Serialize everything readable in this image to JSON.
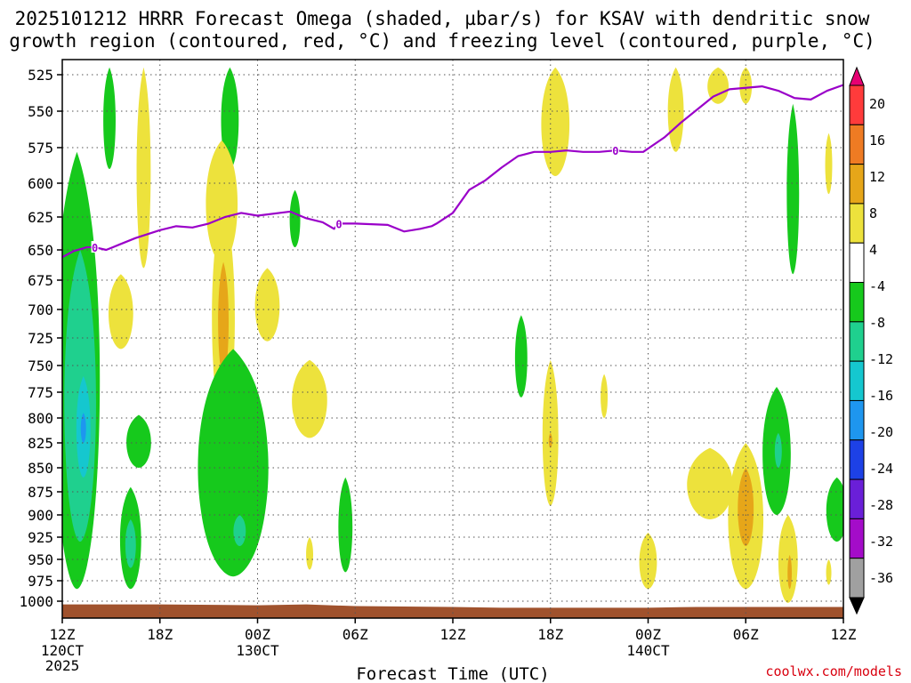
{
  "chart_data": {
    "type": "heatmap",
    "title_line1": "2025101212 HRRR Forecast Omega (shaded, µbar/s) for KSAV with dendritic snow",
    "title_line2": "growth region (contoured, red, °C) and freezing level (contoured, purple, °C)",
    "xlabel": "Forecast Time (UTC)",
    "credit": "coolwx.com/models",
    "x_hours": [
      0,
      6,
      12,
      18,
      24,
      30,
      36,
      42,
      48
    ],
    "x_tick_labels": [
      "12Z",
      "18Z",
      "00Z",
      "06Z",
      "12Z",
      "18Z",
      "00Z",
      "06Z",
      "12Z"
    ],
    "x_date_labels": [
      {
        "hour": 0,
        "text": "120CT"
      },
      {
        "hour": 12,
        "text": "130CT"
      },
      {
        "hour": 36,
        "text": "140CT"
      }
    ],
    "year_label": "2025",
    "y_levels": [
      525,
      550,
      575,
      600,
      625,
      650,
      675,
      700,
      725,
      750,
      775,
      800,
      825,
      850,
      875,
      900,
      925,
      950,
      975,
      1000
    ],
    "ylim": [
      517,
      1010
    ],
    "colorbar": {
      "levels": [
        20,
        16,
        12,
        8,
        4,
        -4,
        -8,
        -12,
        -16,
        -20,
        -24,
        -28,
        -32,
        -36
      ],
      "colors": [
        "#e60073",
        "#ff3b3b",
        "#ef7b23",
        "#e6a619",
        "#ede23c",
        "#ffffff",
        "#16c91c",
        "#1fd08e",
        "#15c7cf",
        "#1e96ef",
        "#1d41e6",
        "#6a1fd8",
        "#a40cc9",
        "#a0a0a0",
        "#000000"
      ]
    },
    "freezing_level": {
      "label": "0",
      "color": "#9a00c9",
      "hours": [
        0,
        0.7,
        1.5,
        2,
        2.7,
        3.5,
        4.5,
        6,
        7,
        8,
        9,
        10,
        11,
        12,
        14,
        15,
        16,
        16.7,
        17,
        18,
        20,
        21,
        22,
        22.7,
        23,
        24,
        25,
        26,
        27,
        28,
        29,
        30,
        31,
        32,
        33,
        34,
        35,
        35.7,
        37,
        38,
        39,
        40,
        41,
        42,
        43,
        44,
        45,
        46,
        47,
        48
      ],
      "pressure": [
        656,
        651,
        648,
        648,
        650,
        646,
        641,
        635,
        632,
        633,
        630,
        625,
        622,
        624,
        621,
        626,
        629,
        634,
        630,
        630,
        631,
        636,
        634,
        632,
        630,
        622,
        605,
        598,
        589,
        581,
        578,
        578,
        577,
        578,
        578,
        577,
        578,
        578,
        568,
        558,
        549,
        540,
        535,
        534,
        533,
        536,
        541,
        542,
        536,
        532
      ],
      "label_hours": [
        2,
        17,
        34
      ]
    },
    "omega_regions": [
      {
        "name": "early-column-green",
        "value": -8,
        "hour": 0.9,
        "p_top": 578,
        "p_bot": 985,
        "half_width": 1.3
      },
      {
        "name": "early-column-teal",
        "value": -12,
        "hour": 1.1,
        "p_top": 650,
        "p_bot": 930,
        "half_width": 0.9
      },
      {
        "name": "early-column-cyan",
        "value": -16,
        "hour": 1.3,
        "p_top": 760,
        "p_bot": 860,
        "half_width": 0.4
      },
      {
        "name": "early-column-blue",
        "value": -20,
        "hour": 1.3,
        "p_top": 795,
        "p_bot": 825,
        "half_width": 0.15
      },
      {
        "name": "upper-green-1",
        "value": -8,
        "hour": 2.9,
        "p_top": 520,
        "p_bot": 590,
        "half_width": 0.35
      },
      {
        "name": "upper-yellow-1",
        "value": 4,
        "hour": 5.0,
        "p_top": 520,
        "p_bot": 665,
        "half_width": 0.4
      },
      {
        "name": "yellow-700",
        "value": 4,
        "hour": 3.6,
        "p_top": 670,
        "p_bot": 735,
        "half_width": 0.7
      },
      {
        "name": "green-850",
        "value": -8,
        "hour": 4.7,
        "p_top": 797,
        "p_bot": 850,
        "half_width": 0.7
      },
      {
        "name": "green-935",
        "value": -8,
        "hour": 4.2,
        "p_top": 870,
        "p_bot": 985,
        "half_width": 0.6
      },
      {
        "name": "teal-935",
        "value": -12,
        "hour": 4.2,
        "p_top": 905,
        "p_bot": 960,
        "half_width": 0.3
      },
      {
        "name": "upper-green-2",
        "value": -8,
        "hour": 10.3,
        "p_top": 520,
        "p_bot": 590,
        "half_width": 0.5
      },
      {
        "name": "yellow-640",
        "value": 4,
        "hour": 9.8,
        "p_top": 570,
        "p_bot": 660,
        "half_width": 0.9
      },
      {
        "name": "yellow-tall",
        "value": 4,
        "hour": 9.9,
        "p_top": 615,
        "p_bot": 805,
        "half_width": 0.65
      },
      {
        "name": "orange-tall",
        "value": 8,
        "hour": 9.9,
        "p_top": 660,
        "p_bot": 760,
        "half_width": 0.3
      },
      {
        "name": "green-lower-block",
        "value": -8,
        "hour": 10.5,
        "p_top": 735,
        "p_bot": 970,
        "half_width": 2.0
      },
      {
        "name": "teal-915",
        "value": -12,
        "hour": 10.9,
        "p_top": 900,
        "p_bot": 935,
        "half_width": 0.35
      },
      {
        "name": "yellow-695",
        "value": 4,
        "hour": 12.6,
        "p_top": 665,
        "p_bot": 728,
        "half_width": 0.7
      },
      {
        "name": "green-630",
        "value": -8,
        "hour": 14.3,
        "p_top": 605,
        "p_bot": 648,
        "half_width": 0.3
      },
      {
        "name": "yellow-780",
        "value": 4,
        "hour": 15.2,
        "p_top": 745,
        "p_bot": 820,
        "half_width": 1.0
      },
      {
        "name": "yellow-945",
        "value": 4,
        "hour": 15.2,
        "p_top": 925,
        "p_bot": 962,
        "half_width": 0.2
      },
      {
        "name": "green-905",
        "value": -8,
        "hour": 17.4,
        "p_top": 860,
        "p_bot": 965,
        "half_width": 0.4
      },
      {
        "name": "green-745",
        "value": -8,
        "hour": 28.2,
        "p_top": 705,
        "p_bot": 780,
        "half_width": 0.35
      },
      {
        "name": "yellow-upper-right-1",
        "value": 4,
        "hour": 30.3,
        "p_top": 520,
        "p_bot": 595,
        "half_width": 0.8
      },
      {
        "name": "yellow-850-tall",
        "value": 4,
        "hour": 30.0,
        "p_top": 745,
        "p_bot": 890,
        "half_width": 0.45
      },
      {
        "name": "orange-822",
        "value": 8,
        "hour": 30.0,
        "p_top": 815,
        "p_bot": 830,
        "half_width": 0.1
      },
      {
        "name": "yellow-780-small",
        "value": 4,
        "hour": 33.3,
        "p_top": 758,
        "p_bot": 800,
        "half_width": 0.2
      },
      {
        "name": "yellow-565",
        "value": 4,
        "hour": 37.7,
        "p_top": 520,
        "p_bot": 578,
        "half_width": 0.45
      },
      {
        "name": "yellow-540",
        "value": 4,
        "hour": 40.3,
        "p_top": 520,
        "p_bot": 545,
        "half_width": 0.6
      },
      {
        "name": "yellow-535",
        "value": 4,
        "hour": 42.0,
        "p_top": 520,
        "p_bot": 545,
        "half_width": 0.35
      },
      {
        "name": "green-600",
        "value": -8,
        "hour": 44.9,
        "p_top": 545,
        "p_bot": 670,
        "half_width": 0.35
      },
      {
        "name": "yellow-585",
        "value": 4,
        "hour": 47.1,
        "p_top": 565,
        "p_bot": 608,
        "half_width": 0.2
      },
      {
        "name": "yellow-865",
        "value": 4,
        "hour": 39.8,
        "p_top": 830,
        "p_bot": 905,
        "half_width": 1.3
      },
      {
        "name": "yellow-900",
        "value": 4,
        "hour": 42.0,
        "p_top": 825,
        "p_bot": 985,
        "half_width": 1.0
      },
      {
        "name": "orange-900",
        "value": 8,
        "hour": 42.0,
        "p_top": 850,
        "p_bot": 935,
        "half_width": 0.45
      },
      {
        "name": "green-830",
        "value": -8,
        "hour": 43.9,
        "p_top": 770,
        "p_bot": 900,
        "half_width": 0.8
      },
      {
        "name": "teal-830",
        "value": -12,
        "hour": 44.0,
        "p_top": 815,
        "p_bot": 850,
        "half_width": 0.2
      },
      {
        "name": "yellow-950",
        "value": 4,
        "hour": 44.6,
        "p_top": 900,
        "p_bot": 1002,
        "half_width": 0.55
      },
      {
        "name": "orange-960",
        "value": 8,
        "hour": 44.7,
        "p_top": 945,
        "p_bot": 985,
        "half_width": 0.12
      },
      {
        "name": "yellow-955",
        "value": 4,
        "hour": 36.0,
        "p_top": 920,
        "p_bot": 985,
        "half_width": 0.5
      },
      {
        "name": "green-885",
        "value": -8,
        "hour": 47.6,
        "p_top": 860,
        "p_bot": 930,
        "half_width": 0.6
      },
      {
        "name": "yellow-965",
        "value": 4,
        "hour": 47.1,
        "p_top": 950,
        "p_bot": 980,
        "half_width": 0.15
      }
    ],
    "surface_ground": {
      "color": "#a0522d",
      "hours": [
        0,
        6,
        12,
        15,
        18,
        24,
        27,
        30,
        33,
        36,
        39,
        42,
        45,
        48
      ],
      "pressure": [
        1004,
        1004,
        1005,
        1004,
        1006,
        1007,
        1008,
        1008,
        1008,
        1008,
        1007,
        1007,
        1007,
        1007
      ]
    }
  }
}
